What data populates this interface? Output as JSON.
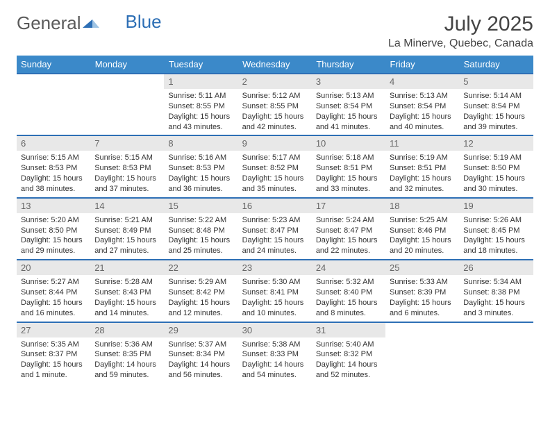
{
  "logo": {
    "text1": "General",
    "text2": "Blue"
  },
  "title": "July 2025",
  "location": "La Minerve, Quebec, Canada",
  "colors": {
    "header_bg": "#3b89c9",
    "header_text": "#ffffff",
    "week_border": "#2d6fb5",
    "daynum_bg": "#e8e8e8",
    "body_text": "#333333",
    "logo_gray": "#5a5a5a",
    "logo_blue": "#2d6fb5"
  },
  "day_headers": [
    "Sunday",
    "Monday",
    "Tuesday",
    "Wednesday",
    "Thursday",
    "Friday",
    "Saturday"
  ],
  "weeks": [
    [
      null,
      null,
      {
        "n": "1",
        "sunrise": "Sunrise: 5:11 AM",
        "sunset": "Sunset: 8:55 PM",
        "day": "Daylight: 15 hours and 43 minutes."
      },
      {
        "n": "2",
        "sunrise": "Sunrise: 5:12 AM",
        "sunset": "Sunset: 8:55 PM",
        "day": "Daylight: 15 hours and 42 minutes."
      },
      {
        "n": "3",
        "sunrise": "Sunrise: 5:13 AM",
        "sunset": "Sunset: 8:54 PM",
        "day": "Daylight: 15 hours and 41 minutes."
      },
      {
        "n": "4",
        "sunrise": "Sunrise: 5:13 AM",
        "sunset": "Sunset: 8:54 PM",
        "day": "Daylight: 15 hours and 40 minutes."
      },
      {
        "n": "5",
        "sunrise": "Sunrise: 5:14 AM",
        "sunset": "Sunset: 8:54 PM",
        "day": "Daylight: 15 hours and 39 minutes."
      }
    ],
    [
      {
        "n": "6",
        "sunrise": "Sunrise: 5:15 AM",
        "sunset": "Sunset: 8:53 PM",
        "day": "Daylight: 15 hours and 38 minutes."
      },
      {
        "n": "7",
        "sunrise": "Sunrise: 5:15 AM",
        "sunset": "Sunset: 8:53 PM",
        "day": "Daylight: 15 hours and 37 minutes."
      },
      {
        "n": "8",
        "sunrise": "Sunrise: 5:16 AM",
        "sunset": "Sunset: 8:53 PM",
        "day": "Daylight: 15 hours and 36 minutes."
      },
      {
        "n": "9",
        "sunrise": "Sunrise: 5:17 AM",
        "sunset": "Sunset: 8:52 PM",
        "day": "Daylight: 15 hours and 35 minutes."
      },
      {
        "n": "10",
        "sunrise": "Sunrise: 5:18 AM",
        "sunset": "Sunset: 8:51 PM",
        "day": "Daylight: 15 hours and 33 minutes."
      },
      {
        "n": "11",
        "sunrise": "Sunrise: 5:19 AM",
        "sunset": "Sunset: 8:51 PM",
        "day": "Daylight: 15 hours and 32 minutes."
      },
      {
        "n": "12",
        "sunrise": "Sunrise: 5:19 AM",
        "sunset": "Sunset: 8:50 PM",
        "day": "Daylight: 15 hours and 30 minutes."
      }
    ],
    [
      {
        "n": "13",
        "sunrise": "Sunrise: 5:20 AM",
        "sunset": "Sunset: 8:50 PM",
        "day": "Daylight: 15 hours and 29 minutes."
      },
      {
        "n": "14",
        "sunrise": "Sunrise: 5:21 AM",
        "sunset": "Sunset: 8:49 PM",
        "day": "Daylight: 15 hours and 27 minutes."
      },
      {
        "n": "15",
        "sunrise": "Sunrise: 5:22 AM",
        "sunset": "Sunset: 8:48 PM",
        "day": "Daylight: 15 hours and 25 minutes."
      },
      {
        "n": "16",
        "sunrise": "Sunrise: 5:23 AM",
        "sunset": "Sunset: 8:47 PM",
        "day": "Daylight: 15 hours and 24 minutes."
      },
      {
        "n": "17",
        "sunrise": "Sunrise: 5:24 AM",
        "sunset": "Sunset: 8:47 PM",
        "day": "Daylight: 15 hours and 22 minutes."
      },
      {
        "n": "18",
        "sunrise": "Sunrise: 5:25 AM",
        "sunset": "Sunset: 8:46 PM",
        "day": "Daylight: 15 hours and 20 minutes."
      },
      {
        "n": "19",
        "sunrise": "Sunrise: 5:26 AM",
        "sunset": "Sunset: 8:45 PM",
        "day": "Daylight: 15 hours and 18 minutes."
      }
    ],
    [
      {
        "n": "20",
        "sunrise": "Sunrise: 5:27 AM",
        "sunset": "Sunset: 8:44 PM",
        "day": "Daylight: 15 hours and 16 minutes."
      },
      {
        "n": "21",
        "sunrise": "Sunrise: 5:28 AM",
        "sunset": "Sunset: 8:43 PM",
        "day": "Daylight: 15 hours and 14 minutes."
      },
      {
        "n": "22",
        "sunrise": "Sunrise: 5:29 AM",
        "sunset": "Sunset: 8:42 PM",
        "day": "Daylight: 15 hours and 12 minutes."
      },
      {
        "n": "23",
        "sunrise": "Sunrise: 5:30 AM",
        "sunset": "Sunset: 8:41 PM",
        "day": "Daylight: 15 hours and 10 minutes."
      },
      {
        "n": "24",
        "sunrise": "Sunrise: 5:32 AM",
        "sunset": "Sunset: 8:40 PM",
        "day": "Daylight: 15 hours and 8 minutes."
      },
      {
        "n": "25",
        "sunrise": "Sunrise: 5:33 AM",
        "sunset": "Sunset: 8:39 PM",
        "day": "Daylight: 15 hours and 6 minutes."
      },
      {
        "n": "26",
        "sunrise": "Sunrise: 5:34 AM",
        "sunset": "Sunset: 8:38 PM",
        "day": "Daylight: 15 hours and 3 minutes."
      }
    ],
    [
      {
        "n": "27",
        "sunrise": "Sunrise: 5:35 AM",
        "sunset": "Sunset: 8:37 PM",
        "day": "Daylight: 15 hours and 1 minute."
      },
      {
        "n": "28",
        "sunrise": "Sunrise: 5:36 AM",
        "sunset": "Sunset: 8:35 PM",
        "day": "Daylight: 14 hours and 59 minutes."
      },
      {
        "n": "29",
        "sunrise": "Sunrise: 5:37 AM",
        "sunset": "Sunset: 8:34 PM",
        "day": "Daylight: 14 hours and 56 minutes."
      },
      {
        "n": "30",
        "sunrise": "Sunrise: 5:38 AM",
        "sunset": "Sunset: 8:33 PM",
        "day": "Daylight: 14 hours and 54 minutes."
      },
      {
        "n": "31",
        "sunrise": "Sunrise: 5:40 AM",
        "sunset": "Sunset: 8:32 PM",
        "day": "Daylight: 14 hours and 52 minutes."
      },
      null,
      null
    ]
  ]
}
